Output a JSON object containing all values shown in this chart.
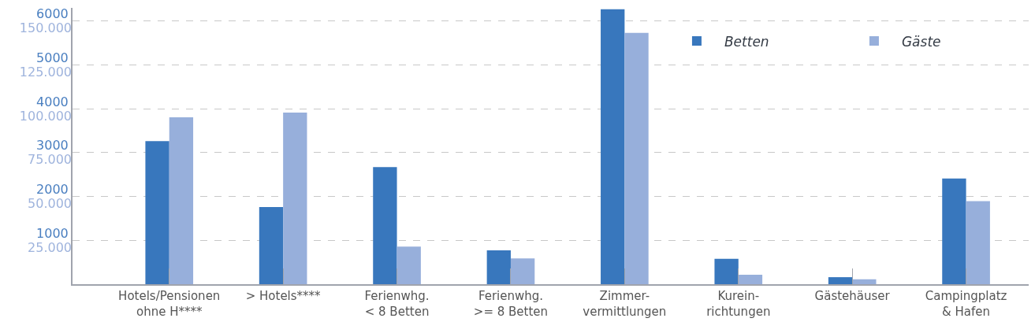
{
  "chart_data": {
    "type": "bar",
    "categories": [
      "Hotels/Pensionen\nohne H****",
      "> Hotels****",
      "Ferienwhg.\n< 8 Betten",
      "Ferienwhg.\n>= 8 Betten",
      "Zimmer-\nvermittlungen",
      "Kurein-\nrichtungen",
      "Gästehäuser",
      "Campingplatz\n& Hafen"
    ],
    "series": [
      {
        "name": "Betten",
        "color": "#3877bd",
        "values": [
          3260,
          1760,
          2670,
          770,
          6270,
          580,
          160,
          2410
        ]
      },
      {
        "name": "Gäste",
        "color": "#97afdb",
        "axis": "y2",
        "values": [
          95100,
          97800,
          21400,
          14700,
          143300,
          5400,
          2800,
          47300
        ]
      }
    ],
    "ylim": [
      0,
      6300
    ],
    "yticks": [
      1000,
      2000,
      3000,
      4000,
      5000,
      6000
    ],
    "y2lim": [
      0,
      157500
    ],
    "y2ticks": [
      {
        "value": 25000,
        "label": "25.000"
      },
      {
        "value": 50000,
        "label": "50.000"
      },
      {
        "value": 75000,
        "label": "75.000"
      },
      {
        "value": 100000,
        "label": "100.000"
      },
      {
        "value": 125000,
        "label": "125.000"
      },
      {
        "value": 150000,
        "label": "150.000"
      }
    ],
    "grid": "y",
    "legend": "top right"
  }
}
